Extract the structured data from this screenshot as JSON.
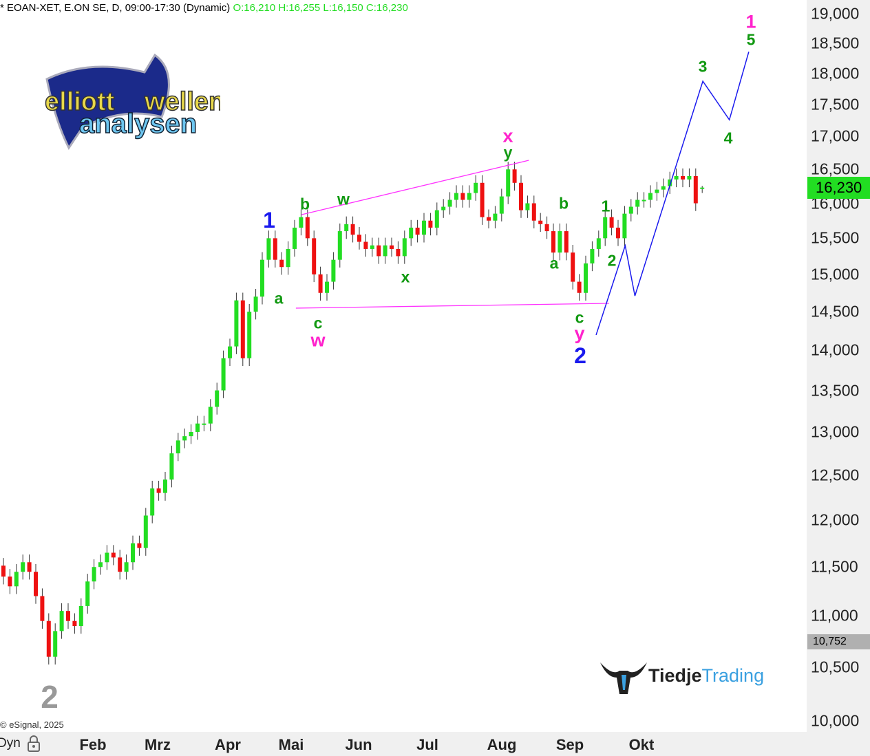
{
  "header": {
    "title": "* EOAN-XET, E.ON SE, D, 09:00-17:30 (Dynamic)",
    "ohlc": "O:16,210 H:16,255 L:16,150 C:16,230"
  },
  "copyright": "© eSignal, 2025",
  "logos": {
    "elliott": "elliott wellen analysen",
    "tiedje_1": "Tiedje",
    "tiedje_2": "Trading"
  },
  "x_axis": {
    "mode": "Dyn",
    "lock_icon": "lock-icon",
    "months": [
      "Feb",
      "Mrz",
      "Apr",
      "Mai",
      "Jun",
      "Jul",
      "Aug",
      "Sep",
      "Okt"
    ]
  },
  "price_tags": {
    "last": "16,230",
    "last_color": "#22dd22",
    "marker": "10,752"
  },
  "colors": {
    "up": "#22dd22",
    "down": "#ee1111",
    "trendline": "#ff33ff",
    "projection": "#1a1aee"
  },
  "wave_labels": [
    "1",
    "5",
    "3",
    "4",
    "x",
    "y",
    "b",
    "w",
    "1",
    "a",
    "c",
    "w",
    "x",
    "b",
    "a",
    "1",
    "2",
    "c",
    "y",
    "2",
    "2"
  ],
  "chart_data": {
    "type": "candlestick",
    "y_scale": "log",
    "ylim": [
      10000,
      19000
    ],
    "y_ticks": [
      "19,000",
      "18,500",
      "18,000",
      "17,500",
      "17,000",
      "16,500",
      "16,000",
      "15,500",
      "15,000",
      "14,500",
      "14,000",
      "13,500",
      "13,000",
      "12,500",
      "12,000",
      "11,500",
      "11,000",
      "10,500",
      "10,000"
    ],
    "y_tick_values": [
      19000,
      18500,
      18000,
      17500,
      17000,
      16500,
      16000,
      15500,
      15000,
      14500,
      14000,
      13500,
      13000,
      12500,
      12000,
      11500,
      11000,
      10500,
      10000
    ],
    "x_labels": [
      "Feb",
      "Mrz",
      "Apr",
      "Mai",
      "Jun",
      "Jul",
      "Aug",
      "Sep",
      "Okt"
    ],
    "close": [
      11400,
      11300,
      11450,
      11550,
      11450,
      11200,
      10950,
      10600,
      10850,
      11050,
      10950,
      10900,
      11100,
      11350,
      11500,
      11550,
      11650,
      11600,
      11450,
      11550,
      11750,
      11700,
      12050,
      12350,
      12300,
      12450,
      12750,
      12900,
      12950,
      13000,
      13100,
      13100,
      13300,
      13500,
      13900,
      14050,
      14650,
      13900,
      14500,
      14700,
      15200,
      15500,
      15200,
      15100,
      15350,
      15650,
      15800,
      15500,
      15000,
      14750,
      14900,
      15200,
      15600,
      15700,
      15550,
      15450,
      15350,
      15400,
      15250,
      15400,
      15350,
      15250,
      15500,
      15650,
      15550,
      15750,
      15650,
      15900,
      15950,
      16050,
      16150,
      16050,
      16150,
      16300,
      15800,
      15750,
      15850,
      16100,
      16500,
      16300,
      15900,
      16000,
      15750,
      15700,
      15600,
      15300,
      15600,
      15300,
      14900,
      14750,
      15150,
      15350,
      15500,
      15800,
      15650,
      15500,
      15850,
      15950,
      16050,
      16050,
      16150,
      16200,
      16250,
      16350,
      16400,
      16350,
      16400,
      16000,
      16230
    ],
    "last_bar": {
      "open": 16210,
      "high": 16255,
      "low": 16150,
      "close": 16230
    },
    "trendlines": [
      {
        "color": "#ff33ff",
        "points": [
          [
            46.1,
            15836
          ],
          [
            81.2,
            16637
          ]
        ]
      },
      {
        "color": "#ff33ff",
        "points": [
          [
            45.2,
            14547
          ],
          [
            93.6,
            14610
          ]
        ]
      }
    ],
    "projection": {
      "color": "#1a1aee",
      "points": [
        [
          91.6,
          14197
        ],
        [
          96.1,
          15397
        ],
        [
          97.6,
          14710
        ],
        [
          108.1,
          17876
        ],
        [
          112.2,
          17260
        ],
        [
          115.2,
          18360
        ]
      ]
    }
  }
}
